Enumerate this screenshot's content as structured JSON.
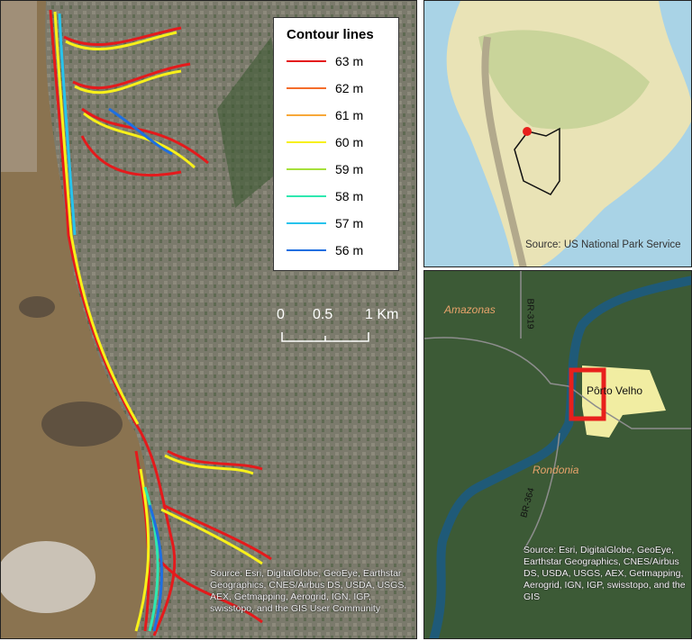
{
  "main_map": {
    "legend": {
      "title": "Contour lines",
      "items": [
        {
          "label": "63 m",
          "color": "#e41a1c"
        },
        {
          "label": "62 m",
          "color": "#f46d2a"
        },
        {
          "label": "61 m",
          "color": "#f7a839"
        },
        {
          "label": "60 m",
          "color": "#f7f01a"
        },
        {
          "label": "59 m",
          "color": "#a6e03a"
        },
        {
          "label": "58 m",
          "color": "#2ee8b0"
        },
        {
          "label": "57 m",
          "color": "#27c3ec"
        },
        {
          "label": "56 m",
          "color": "#1f6fe0"
        }
      ]
    },
    "scale_bar": {
      "ticks": [
        "0",
        "0.5",
        "1 Km"
      ]
    },
    "credit": "Source: Esri, DigitalGlobe, GeoEye, Earthstar Geographics, CNES/Airbus DS, USDA, USGS, AEX, Getmapping, Aerogrid, IGN, IGP, swisstopo, and the GIS User Community"
  },
  "inset_continent": {
    "credit": "Source: US National Park Service",
    "marker_color": "#e8201c"
  },
  "inset_region": {
    "labels": {
      "state_north": "Amazonas",
      "state_south": "Rondonia",
      "road_north": "BR-319",
      "road_south": "BR-364",
      "city": "Pôrto Velho"
    },
    "extent_box_color": "#e8201c",
    "credit": "Source: Esri, DigitalGlobe, GeoEye, Earthstar Geographics, CNES/Airbus DS, USDA, USGS, AEX, Getmapping, Aerogrid, IGN, IGP, swisstopo, and the GIS"
  }
}
